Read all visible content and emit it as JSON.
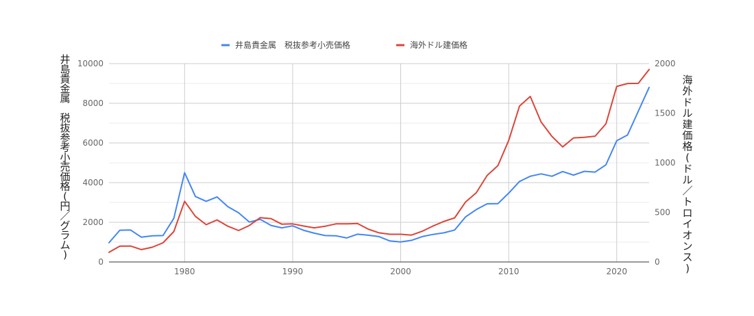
{
  "chart_data": {
    "type": "line",
    "legend_position": "top",
    "grid": true,
    "x": [
      1973,
      1974,
      1975,
      1976,
      1977,
      1978,
      1979,
      1980,
      1981,
      1982,
      1983,
      1984,
      1985,
      1986,
      1987,
      1988,
      1989,
      1990,
      1991,
      1992,
      1993,
      1994,
      1995,
      1996,
      1997,
      1998,
      1999,
      2000,
      2001,
      2002,
      2003,
      2004,
      2005,
      2006,
      2007,
      2008,
      2009,
      2010,
      2011,
      2012,
      2013,
      2014,
      2015,
      2016,
      2017,
      2018,
      2019,
      2020,
      2021,
      2022,
      2023
    ],
    "xlim": [
      1973,
      2023
    ],
    "x_ticks": [
      1980,
      1990,
      2000,
      2010,
      2020
    ],
    "series": [
      {
        "name": "井島貴金属　税抜参考小売価格",
        "axis": "left",
        "color": "#4285f4",
        "values": [
          970,
          1600,
          1610,
          1250,
          1320,
          1330,
          2200,
          4500,
          3300,
          3060,
          3280,
          2790,
          2480,
          2010,
          2150,
          1840,
          1720,
          1820,
          1600,
          1450,
          1330,
          1320,
          1210,
          1400,
          1350,
          1280,
          1060,
          1010,
          1090,
          1280,
          1390,
          1470,
          1610,
          2270,
          2640,
          2930,
          2940,
          3470,
          4060,
          4320,
          4440,
          4320,
          4560,
          4380,
          4570,
          4530,
          4900,
          6110,
          6400,
          7600,
          8800
        ]
      },
      {
        "name": "海外ドル建価格",
        "axis": "right",
        "color": "#db4437",
        "values": [
          97,
          159,
          161,
          125,
          148,
          193,
          307,
          612,
          460,
          376,
          424,
          361,
          317,
          368,
          447,
          437,
          381,
          384,
          363,
          344,
          360,
          384,
          384,
          388,
          331,
          294,
          279,
          279,
          271,
          310,
          363,
          409,
          445,
          604,
          697,
          872,
          972,
          1225,
          1572,
          1669,
          1411,
          1266,
          1160,
          1251,
          1257,
          1268,
          1393,
          1770,
          1799,
          1801,
          1941
        ]
      }
    ],
    "left_axis": {
      "title": "井島貴金属　税抜参考小売価格(円／グラム)",
      "ylim": [
        0,
        10000
      ],
      "ticks": [
        0,
        2000,
        4000,
        6000,
        8000,
        10000
      ],
      "tick_labels": [
        "0",
        "2000",
        "4000",
        "6000",
        "8000",
        "10000"
      ]
    },
    "right_axis": {
      "title": "海外ドル建価格(ドル／トロイオンス)",
      "ylim": [
        0,
        2000
      ],
      "ticks": [
        0,
        500,
        1000,
        1500,
        2000
      ],
      "tick_labels": [
        "0",
        "500",
        "1000",
        "1500",
        "2000"
      ]
    }
  }
}
